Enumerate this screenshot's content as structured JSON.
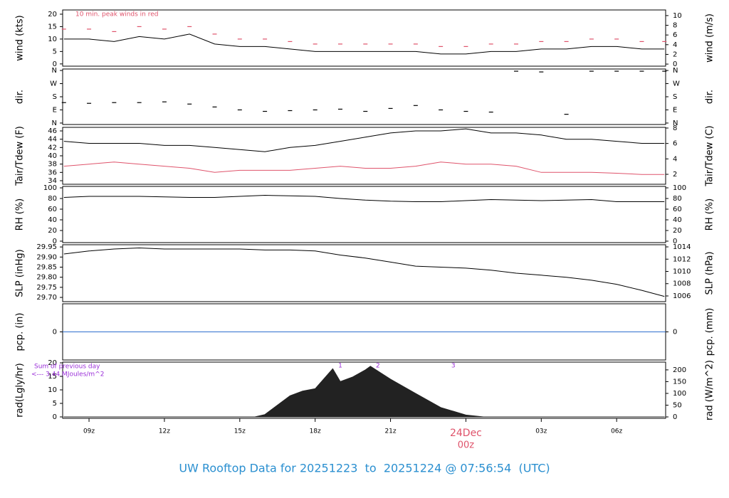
{
  "title": "UW Rooftop Data for 20251223  to  20251224 @ 07:56:54  (UTC)",
  "x_axis": {
    "xlim": [
      7.95,
      31.95
    ],
    "xticks": [
      {
        "value": 9,
        "label": "09z"
      },
      {
        "value": 12,
        "label": "12z"
      },
      {
        "value": 15,
        "label": "15z"
      },
      {
        "value": 18,
        "label": "18z"
      },
      {
        "value": 21,
        "label": "21z"
      },
      {
        "value": 24,
        "label": "00z"
      },
      {
        "value": 27,
        "label": "03z"
      },
      {
        "value": 30,
        "label": "06z"
      }
    ],
    "date_label": {
      "value": 24,
      "label": "24Dec"
    }
  },
  "chart_data": [
    {
      "type": "line",
      "ylabel": "wind (kts)",
      "y2label": "wind (m/s)",
      "annotation": "10 min. peak winds in red",
      "ylim": [
        -0.9,
        21.7
      ],
      "yticks": [
        0,
        5,
        10,
        15,
        20
      ],
      "y2lim": [
        -0.43,
        11.16
      ],
      "y2ticks": [
        0,
        2,
        4,
        6,
        8,
        10
      ],
      "x": [
        8,
        9,
        10,
        11,
        12,
        13,
        14,
        15,
        16,
        17,
        18,
        19,
        20,
        21,
        22,
        23,
        24,
        25,
        26,
        27,
        28,
        29,
        30,
        31,
        31.9
      ],
      "series": [
        {
          "name": "wind",
          "color": "#000000",
          "style": "line",
          "values": [
            10,
            10,
            9,
            11,
            10,
            12,
            8,
            7,
            7,
            6,
            5,
            5,
            5,
            5,
            5,
            4,
            4,
            5,
            5,
            6,
            6,
            7,
            7,
            6,
            6
          ]
        },
        {
          "name": "peak",
          "color": "#df536b",
          "style": "dashes",
          "values": [
            14,
            14,
            13,
            15,
            14,
            15,
            12,
            10,
            10,
            9,
            8,
            8,
            8,
            8,
            8,
            7,
            7,
            8,
            8,
            9,
            9,
            10,
            10,
            9,
            9
          ]
        }
      ]
    },
    {
      "type": "scatter",
      "ylabel": "dir.",
      "y2label": "dir.",
      "ylim": [
        -10,
        370
      ],
      "yticks": [
        {
          "value": 0,
          "label": "N"
        },
        {
          "value": 90,
          "label": "E"
        },
        {
          "value": 180,
          "label": "S"
        },
        {
          "value": 270,
          "label": "W"
        },
        {
          "value": 360,
          "label": "N"
        }
      ],
      "y2lim": [
        -10,
        370
      ],
      "y2ticks": [
        {
          "value": 0,
          "label": "N"
        },
        {
          "value": 90,
          "label": "E"
        },
        {
          "value": 180,
          "label": "S"
        },
        {
          "value": 270,
          "label": "W"
        },
        {
          "value": 360,
          "label": "N"
        }
      ],
      "x": [
        8,
        9,
        10,
        11,
        12,
        13,
        14,
        15,
        16,
        17,
        18,
        19,
        20,
        21,
        22,
        23,
        24,
        25,
        26,
        27,
        28,
        29,
        30,
        31,
        31.9
      ],
      "series": [
        {
          "name": "dir",
          "color": "#000000",
          "values": [
            140,
            135,
            140,
            140,
            145,
            130,
            110,
            90,
            80,
            85,
            90,
            95,
            80,
            100,
            120,
            90,
            80,
            75,
            355,
            350,
            60,
            355,
            355,
            355,
            355
          ]
        }
      ]
    },
    {
      "type": "line",
      "ylabel": "Tair/Tdew (F)",
      "y2label": "Tair/Tdew (C)",
      "ylim": [
        33.14,
        46.86
      ],
      "yticks": [
        34,
        36,
        38,
        40,
        42,
        44,
        46
      ],
      "y2lim": [
        0.71,
        8.09
      ],
      "y2ticks": [
        2,
        4,
        6,
        8
      ],
      "x": [
        8,
        9,
        10,
        11,
        12,
        13,
        14,
        15,
        16,
        17,
        18,
        19,
        20,
        21,
        22,
        23,
        24,
        25,
        26,
        27,
        28,
        29,
        30,
        31,
        31.9
      ],
      "series": [
        {
          "name": "Tair",
          "color": "#000000",
          "style": "line",
          "values": [
            43.5,
            43,
            43,
            43,
            42.5,
            42.5,
            42,
            41.5,
            41,
            42,
            42.5,
            43.5,
            44.5,
            45.5,
            46,
            46,
            46.5,
            45.5,
            45.5,
            45,
            44,
            44,
            43.5,
            43,
            43
          ]
        },
        {
          "name": "Tdew",
          "color": "#df536b",
          "style": "line",
          "values": [
            37.5,
            38,
            38.5,
            38,
            37.5,
            37,
            36,
            36.5,
            36.5,
            36.5,
            37,
            37.5,
            37,
            37,
            37.5,
            38.5,
            38,
            38,
            37.5,
            36,
            36,
            36,
            35.8,
            35.5,
            35.5
          ]
        }
      ]
    },
    {
      "type": "line",
      "ylabel": "RH (%)",
      "y2label": "RH (%)",
      "ylim": [
        -2.7,
        102.7
      ],
      "yticks": [
        0,
        20,
        40,
        60,
        80,
        100
      ],
      "y2lim": [
        -2.7,
        102.7
      ],
      "y2ticks": [
        0,
        20,
        40,
        60,
        80,
        100
      ],
      "x": [
        8,
        9,
        10,
        11,
        12,
        13,
        14,
        15,
        16,
        17,
        18,
        19,
        20,
        21,
        22,
        23,
        24,
        25,
        26,
        27,
        28,
        29,
        30,
        31,
        31.9
      ],
      "series": [
        {
          "name": "RH",
          "color": "#000000",
          "style": "line",
          "values": [
            82,
            84,
            84,
            84,
            83,
            82,
            82,
            84,
            86,
            85,
            84,
            80,
            77,
            75,
            74,
            74,
            76,
            78,
            77,
            76,
            77,
            78,
            74,
            74,
            74
          ]
        }
      ]
    },
    {
      "type": "line",
      "ylabel": "SLP (inHg)",
      "y2label": "SLP (hPa)",
      "ylim": [
        29.679,
        29.961
      ],
      "yticks": [
        {
          "value": 29.7,
          "label": "29.70"
        },
        29.75,
        {
          "value": 29.8,
          "label": "29.80"
        },
        29.85,
        {
          "value": 29.9,
          "label": "29.90"
        },
        29.95
      ],
      "y2lim": [
        1005.07,
        1014.35
      ],
      "y2ticks": [
        1006,
        1008,
        1010,
        1012,
        1014
      ],
      "x": [
        8,
        9,
        10,
        11,
        12,
        13,
        14,
        15,
        16,
        17,
        18,
        19,
        20,
        21,
        22,
        23,
        24,
        25,
        26,
        27,
        28,
        29,
        30,
        31,
        31.9
      ],
      "series": [
        {
          "name": "SLP",
          "color": "#000000",
          "style": "line",
          "values": [
            29.915,
            29.93,
            29.94,
            29.945,
            29.94,
            29.94,
            29.94,
            29.94,
            29.935,
            29.935,
            29.93,
            29.91,
            29.895,
            29.875,
            29.855,
            29.85,
            29.845,
            29.835,
            29.82,
            29.81,
            29.8,
            29.785,
            29.765,
            29.735,
            29.705
          ]
        }
      ]
    },
    {
      "type": "line",
      "ylabel": "pcp. (in)",
      "y2label": "pcp. (mm)",
      "ylim": [
        -0.1,
        0.1
      ],
      "yticks": [
        0
      ],
      "y2lim": [
        -2.54,
        2.54
      ],
      "y2ticks": [
        0
      ],
      "x": [
        7.95,
        31.95
      ],
      "series": [
        {
          "name": "pcp",
          "color": "#2e6fcf",
          "style": "line",
          "values": [
            0,
            0
          ]
        }
      ]
    },
    {
      "type": "area",
      "ylabel": "rad(Lgly/hr)",
      "y2label": "rad (W/m^2)",
      "annotation": "Sum of previous day",
      "annotation2": "<--- 3.44 MJoules/m^2",
      "day_marks": [
        {
          "value": 19,
          "label": "1"
        },
        {
          "value": 20.5,
          "label": "2"
        },
        {
          "value": 23.5,
          "label": "3"
        }
      ],
      "ylim": [
        -0.53,
        20.26
      ],
      "yticks": [
        0,
        5,
        10,
        15,
        20
      ],
      "y2lim": [
        -6,
        233
      ],
      "y2ticks": [
        0,
        50,
        100,
        150,
        200
      ],
      "x": [
        8,
        15.6,
        16,
        17,
        17.5,
        18,
        18.7,
        19,
        19.5,
        20,
        20.2,
        21,
        22,
        23,
        24,
        24.7,
        31.9
      ],
      "series": [
        {
          "name": "rad",
          "color": "#222222",
          "axis": "y2",
          "values": [
            0,
            0,
            10,
            90,
            110,
            120,
            205,
            150,
            170,
            200,
            215,
            160,
            100,
            40,
            8,
            0,
            0
          ]
        }
      ]
    }
  ]
}
